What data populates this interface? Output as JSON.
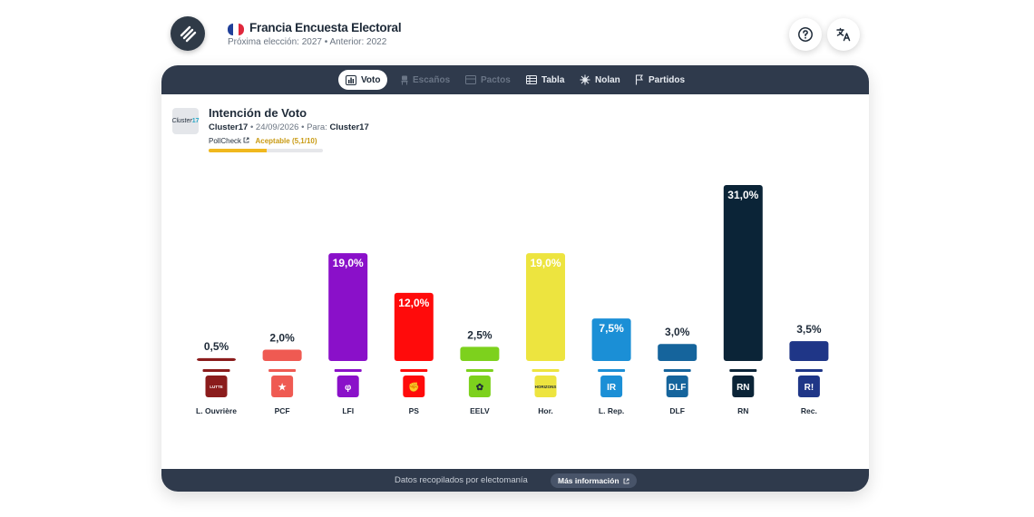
{
  "header": {
    "title": "Francia Encuesta Electoral",
    "subtitle": "Próxima elección: 2027 • Anterior: 2022",
    "flag_colors": [
      "#1f3f99",
      "#ffffff",
      "#e0283c"
    ],
    "help_icon": "question-circle-icon",
    "translate_icon": "translate-icon"
  },
  "tabs": [
    {
      "label": "Voto",
      "icon": "bar-chart-icon",
      "state": "active"
    },
    {
      "label": "Escaños",
      "icon": "seat-icon",
      "state": "disabled"
    },
    {
      "label": "Pactos",
      "icon": "pacts-icon",
      "state": "disabled"
    },
    {
      "label": "Tabla",
      "icon": "table-icon",
      "state": "enabled"
    },
    {
      "label": "Nolan",
      "icon": "nolan-icon",
      "state": "enabled"
    },
    {
      "label": "Partidos",
      "icon": "flag-icon",
      "state": "enabled"
    }
  ],
  "poll": {
    "title": "Intención de Voto",
    "pollster": "Cluster17",
    "date": "24/09/2026",
    "for_label": "Para:",
    "client": "Cluster17",
    "logo_text_a": "Cluster",
    "logo_text_b": "17",
    "pollcheck_label": "PollCheck",
    "pollcheck_rating": "Aceptable (5,1/10)",
    "pollcheck_score": 0.51,
    "accent": "#f0b81e"
  },
  "chart_data": {
    "type": "bar",
    "title": "Intención de Voto",
    "ylim": [
      0,
      31
    ],
    "categories": [
      "L. Ouvrière",
      "PCF",
      "LFI",
      "PS",
      "EELV",
      "Hor.",
      "L. Rep.",
      "DLF",
      "RN",
      "Rec."
    ],
    "values": [
      0.5,
      2.0,
      19.0,
      12.0,
      2.5,
      19.0,
      7.5,
      3.0,
      31.0,
      3.5
    ],
    "labels": [
      "0,5%",
      "2,0%",
      "19,0%",
      "12,0%",
      "2,5%",
      "19,0%",
      "7,5%",
      "3,0%",
      "31,0%",
      "3,5%"
    ],
    "colors": [
      "#8b1c1c",
      "#ef5a52",
      "#8a10c9",
      "#ff0b0b",
      "#7dd11d",
      "#ede43f",
      "#1b8fd6",
      "#15649c",
      "#0b2437",
      "#1f3687"
    ],
    "logo_texts": [
      "LUTTE",
      "★",
      "φ",
      "✊",
      "✿",
      "HORIZONS",
      "IR",
      "DLF",
      "RN",
      "R!"
    ],
    "grid": false,
    "legend": "none"
  },
  "footer": {
    "text": "Datos recopilados por electomanía",
    "button": "Más información"
  }
}
